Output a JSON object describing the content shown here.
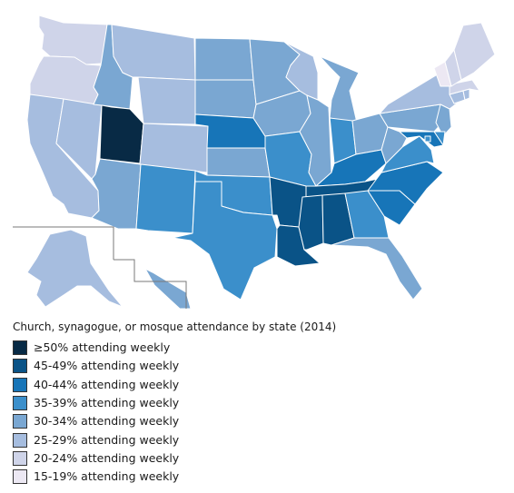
{
  "legend": {
    "title": "Church, synagogue, or mosque attendance by state (2014)",
    "items": [
      {
        "label": "≥50% attending weekly",
        "color": "#082a45"
      },
      {
        "label": "45-49% attending weekly",
        "color": "#0a5387"
      },
      {
        "label": "40-44% attending weekly",
        "color": "#1775b8"
      },
      {
        "label": "35-39% attending weekly",
        "color": "#3b8fcb"
      },
      {
        "label": "30-34% attending weekly",
        "color": "#7aa7d2"
      },
      {
        "label": "25-29% attending weekly",
        "color": "#a6bddf"
      },
      {
        "label": "20-24% attending weekly",
        "color": "#cfd4e9"
      },
      {
        "label": "15-19% attending weekly",
        "color": "#ece8f3"
      }
    ]
  },
  "states": [
    {
      "code": "WA",
      "tier": 6
    },
    {
      "code": "OR",
      "tier": 6
    },
    {
      "code": "CA",
      "tier": 5
    },
    {
      "code": "NV",
      "tier": 5
    },
    {
      "code": "ID",
      "tier": 4
    },
    {
      "code": "MT",
      "tier": 5
    },
    {
      "code": "WY",
      "tier": 5
    },
    {
      "code": "UT",
      "tier": 0
    },
    {
      "code": "AZ",
      "tier": 4
    },
    {
      "code": "CO",
      "tier": 5
    },
    {
      "code": "NM",
      "tier": 3
    },
    {
      "code": "ND",
      "tier": 4
    },
    {
      "code": "SD",
      "tier": 4
    },
    {
      "code": "NE",
      "tier": 2
    },
    {
      "code": "KS",
      "tier": 4
    },
    {
      "code": "OK",
      "tier": 3
    },
    {
      "code": "TX",
      "tier": 3
    },
    {
      "code": "MN",
      "tier": 4
    },
    {
      "code": "IA",
      "tier": 4
    },
    {
      "code": "MO",
      "tier": 3
    },
    {
      "code": "AR",
      "tier": 1
    },
    {
      "code": "LA",
      "tier": 1
    },
    {
      "code": "WI",
      "tier": 5
    },
    {
      "code": "IL",
      "tier": 4
    },
    {
      "code": "MI",
      "tier": 4
    },
    {
      "code": "IN",
      "tier": 3
    },
    {
      "code": "OH",
      "tier": 4
    },
    {
      "code": "KY",
      "tier": 2
    },
    {
      "code": "TN",
      "tier": 1
    },
    {
      "code": "MS",
      "tier": 1
    },
    {
      "code": "AL",
      "tier": 1
    },
    {
      "code": "GA",
      "tier": 3
    },
    {
      "code": "FL",
      "tier": 4
    },
    {
      "code": "SC",
      "tier": 2
    },
    {
      "code": "NC",
      "tier": 2
    },
    {
      "code": "VA",
      "tier": 3
    },
    {
      "code": "WV",
      "tier": 4
    },
    {
      "code": "PA",
      "tier": 4
    },
    {
      "code": "NY",
      "tier": 5
    },
    {
      "code": "NJ",
      "tier": 4
    },
    {
      "code": "DE",
      "tier": 3
    },
    {
      "code": "MD",
      "tier": 2
    },
    {
      "code": "DC",
      "tier": 3
    },
    {
      "code": "CT",
      "tier": 5
    },
    {
      "code": "RI",
      "tier": 5
    },
    {
      "code": "MA",
      "tier": 6
    },
    {
      "code": "VT",
      "tier": 7
    },
    {
      "code": "NH",
      "tier": 6
    },
    {
      "code": "ME",
      "tier": 6
    },
    {
      "code": "AK",
      "tier": 5
    },
    {
      "code": "HI",
      "tier": 4
    }
  ]
}
